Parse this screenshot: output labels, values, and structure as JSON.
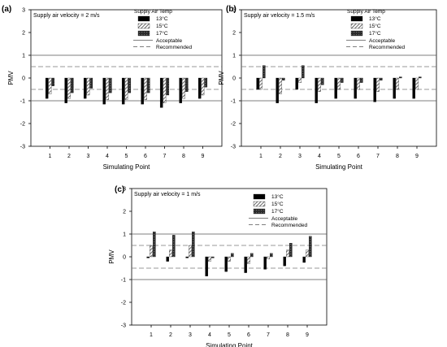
{
  "chart_data": [
    {
      "type": "bar",
      "panel_label": "(a)",
      "annotation": "Supply air velocity = 2 m/s",
      "xlabel": "Simulating Point",
      "ylabel": "PMV",
      "categories": [
        "1",
        "2",
        "3",
        "4",
        "5",
        "6",
        "7",
        "8",
        "9"
      ],
      "ylim": [
        -3,
        3
      ],
      "yticks": [
        "-3",
        "-2",
        "-1",
        "0",
        "1",
        "2",
        "3"
      ],
      "legend_title": "Supply Air Temp",
      "series": [
        {
          "name": "13°C",
          "values": [
            -0.9,
            -1.1,
            -0.9,
            -1.15,
            -1.15,
            -1.15,
            -1.3,
            -1.1,
            -0.9
          ]
        },
        {
          "name": "15°C",
          "values": [
            -0.7,
            -0.9,
            -0.75,
            -0.95,
            -0.95,
            -0.95,
            -1.1,
            -0.9,
            -0.75
          ]
        },
        {
          "name": "17°C",
          "values": [
            -0.35,
            -0.65,
            -0.45,
            -0.65,
            -0.65,
            -0.65,
            -0.75,
            -0.6,
            -0.4
          ]
        }
      ],
      "reference_lines": [
        {
          "name": "Acceptable",
          "style": "solid",
          "values": [
            1,
            -1
          ]
        },
        {
          "name": "Recommended",
          "style": "dashed",
          "values": [
            0.5,
            -0.5
          ]
        }
      ]
    },
    {
      "type": "bar",
      "panel_label": "(b)",
      "annotation": "Supply air velocity = 1.5 m/s",
      "xlabel": "Simulating Point",
      "ylabel": "PMV",
      "categories": [
        "1",
        "2",
        "3",
        "4",
        "5",
        "6",
        "7",
        "8",
        "9"
      ],
      "ylim": [
        -3,
        3
      ],
      "yticks": [
        "-3",
        "-2",
        "-1",
        "0",
        "1",
        "2",
        "3"
      ],
      "legend_title": "Supply Air Temp",
      "series": [
        {
          "name": "13°C",
          "values": [
            -0.5,
            -1.1,
            -0.5,
            -1.1,
            -0.9,
            -0.9,
            -1.05,
            -0.9,
            -0.9
          ]
        },
        {
          "name": "15°C",
          "values": [
            -0.5,
            -0.7,
            -0.2,
            -0.6,
            -0.5,
            -0.5,
            -0.6,
            -0.5,
            -0.5
          ]
        },
        {
          "name": "17°C",
          "values": [
            0.55,
            -0.1,
            0.55,
            -0.3,
            -0.2,
            -0.2,
            -0.1,
            0.05,
            0.05
          ]
        }
      ],
      "reference_lines": [
        {
          "name": "Acceptable",
          "style": "solid",
          "values": [
            1,
            -1
          ]
        },
        {
          "name": "Recommended",
          "style": "dashed",
          "values": [
            0.5,
            -0.5
          ]
        }
      ]
    },
    {
      "type": "bar",
      "panel_label": "(c)",
      "annotation": "Supply air velocity = 1 m/s",
      "xlabel": "Simulating Point",
      "ylabel": "PMV",
      "categories": [
        "1",
        "2",
        "3",
        "4",
        "5",
        "6",
        "7",
        "8",
        "9"
      ],
      "ylim": [
        -3,
        3
      ],
      "yticks": [
        "-3",
        "-2",
        "-1",
        "0",
        "1",
        "2",
        "3"
      ],
      "legend_title": "",
      "series": [
        {
          "name": "13°C",
          "values": [
            -0.05,
            -0.2,
            -0.05,
            -0.85,
            -0.65,
            -0.7,
            -0.55,
            -0.4,
            -0.25
          ]
        },
        {
          "name": "15°C",
          "values": [
            0.5,
            0.3,
            0.5,
            -0.2,
            -0.2,
            -0.3,
            -0.1,
            0.3,
            0.3
          ]
        },
        {
          "name": "17°C",
          "values": [
            1.1,
            0.95,
            1.1,
            -0.05,
            0.15,
            0.15,
            0.15,
            0.6,
            0.9
          ]
        }
      ],
      "reference_lines": [
        {
          "name": "Acceptable",
          "style": "solid",
          "values": [
            1,
            -1
          ]
        },
        {
          "name": "Recommended",
          "style": "dashed",
          "values": [
            0.5,
            -0.5
          ]
        }
      ]
    }
  ]
}
